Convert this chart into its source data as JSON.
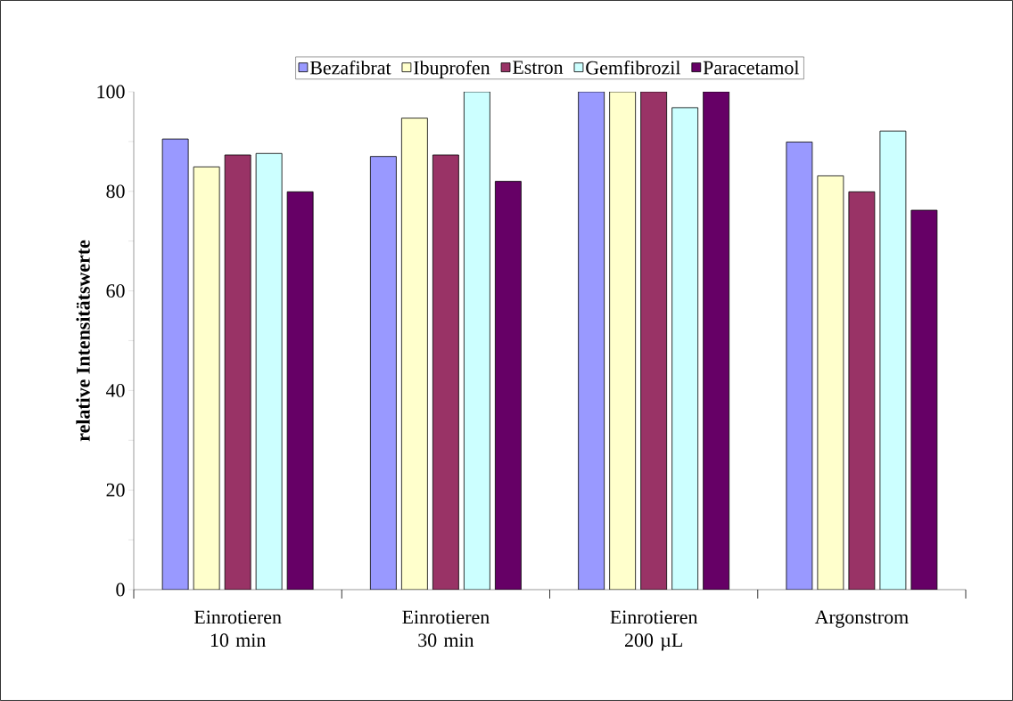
{
  "chart_data": {
    "type": "bar",
    "ylabel": "relative Intensitätswerte",
    "categories": [
      "Einrotieren 10 min",
      "Einrotieren 30 min",
      "Einrotieren 200 µL",
      "Argonstrom"
    ],
    "series": [
      {
        "name": "Bezafibrat",
        "color": "#9999ff",
        "values": [
          90.5,
          87.0,
          100,
          89.9
        ]
      },
      {
        "name": "Ibuprofen",
        "color": "#ffffcc",
        "values": [
          84.9,
          94.7,
          100,
          83.1
        ]
      },
      {
        "name": "Estron",
        "color": "#993366",
        "values": [
          87.3,
          87.3,
          100,
          79.9
        ]
      },
      {
        "name": "Gemfibrozil",
        "color": "#ccffff",
        "values": [
          87.6,
          100,
          96.8,
          92.1
        ]
      },
      {
        "name": "Paracetamol",
        "color": "#660066",
        "values": [
          79.9,
          82.0,
          100,
          76.2
        ]
      }
    ],
    "ylim": [
      0,
      100
    ],
    "yticks": [
      0,
      {
        "value": 10,
        "label": null
      },
      20,
      {
        "value": 30,
        "label": null
      },
      40,
      {
        "value": 50,
        "label": null
      },
      60,
      {
        "value": 70,
        "label": null
      },
      80,
      {
        "value": 90,
        "label": null
      },
      100
    ],
    "grid": false,
    "legend": "top"
  }
}
